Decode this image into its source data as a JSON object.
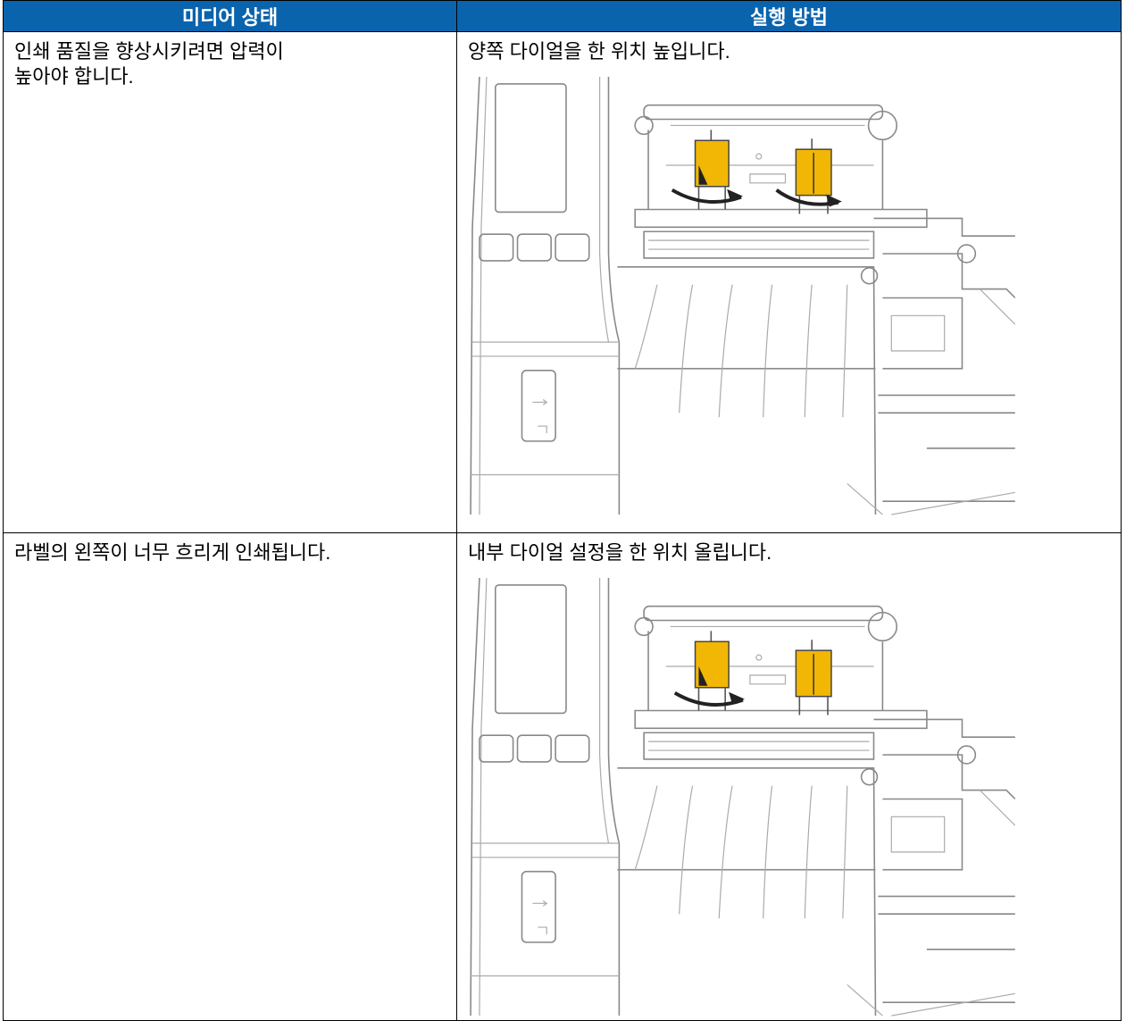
{
  "header": {
    "columns": [
      "미디어 상태",
      "실행 방법"
    ]
  },
  "table": {
    "rows": [
      [
        "인쇄 품질을 향상시키려면 압력이\n높아야 합니다.",
        "양쪽 다이얼을 한 위치 높입니다."
      ],
      [
        "라벨의 왼쪽이 너무 흐리게 인쇄됩니다.",
        "내부 다이얼 설정을 한 위치 올립니다."
      ]
    ]
  }
}
